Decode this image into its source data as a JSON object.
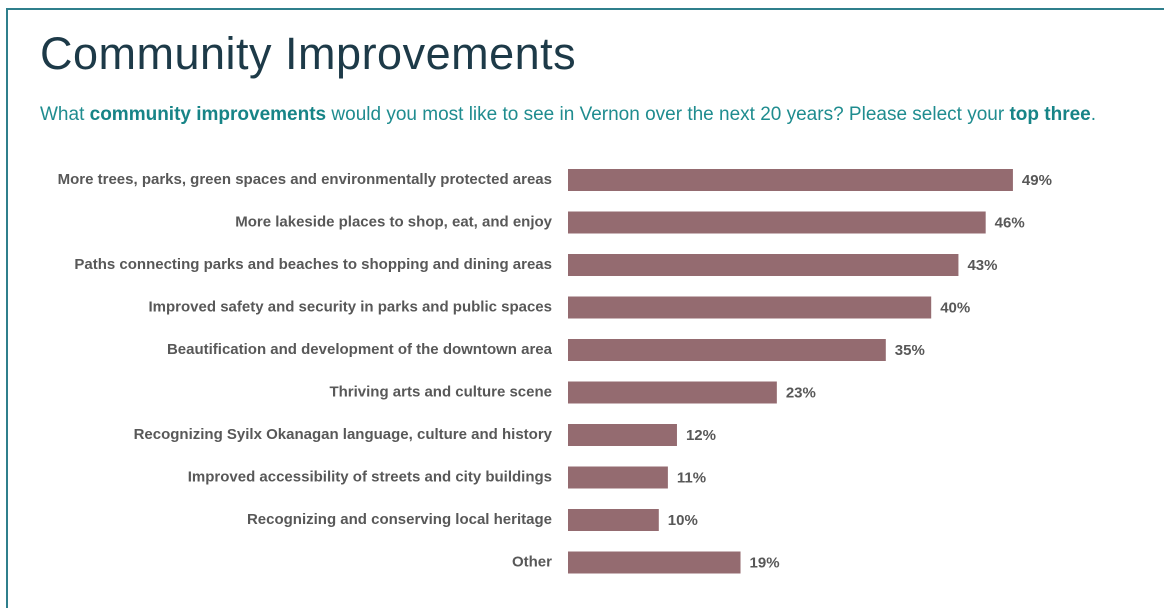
{
  "chart_data": {
    "type": "bar",
    "orientation": "horizontal",
    "title": "Community Improvements",
    "subtitle": [
      {
        "text": "What ",
        "bold": false
      },
      {
        "text": "community improvements",
        "bold": true
      },
      {
        "text": " would you most like to see in Vernon over the next 20 years?  Please select your ",
        "bold": false
      },
      {
        "text": "top three",
        "bold": true
      },
      {
        "text": ".",
        "bold": false
      }
    ],
    "categories": [
      "More trees, parks, green spaces and environmentally protected areas",
      "More lakeside places to shop, eat, and enjoy",
      "Paths connecting parks and beaches to shopping and dining areas",
      "Improved safety and security in parks and public spaces",
      "Beautification and development of the downtown area",
      "Thriving arts and culture scene",
      "Recognizing Syilx Okanagan language, culture and history",
      "Improved accessibility of streets and city buildings",
      "Recognizing and conserving local heritage",
      "Other"
    ],
    "values": [
      49,
      46,
      43,
      40,
      35,
      23,
      12,
      11,
      10,
      19
    ],
    "value_labels": [
      "49%",
      "46%",
      "43%",
      "40%",
      "35%",
      "23%",
      "12%",
      "11%",
      "10%",
      "19%"
    ],
    "color": "#946b70"
  }
}
